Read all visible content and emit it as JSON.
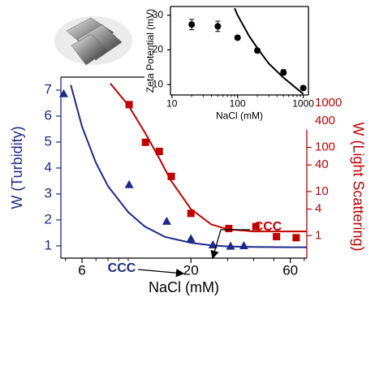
{
  "chart_data": [
    {
      "type": "scatter",
      "xlabel": "NaCl (mM)",
      "ylabel": "W (Turbidity)",
      "y2label": "W (Light Scattering)",
      "xlog": true,
      "y2log": true,
      "xlim": [
        4.75,
        72
      ],
      "xticks": [
        6,
        20,
        60
      ],
      "xminorticks": [
        5,
        7,
        8,
        9,
        10,
        30,
        40,
        50,
        70
      ],
      "ylim": [
        0.53,
        7.5
      ],
      "yticks": [
        1,
        2,
        3,
        4,
        5,
        6,
        7
      ],
      "y2lim": [
        0.31,
        3900
      ],
      "y2ticks": [
        1,
        4,
        10,
        40,
        100,
        400,
        1000
      ],
      "ycolor": "#1c2a8a",
      "y2color": "#c00000",
      "series": [
        {
          "marker": "triangle",
          "color": "#1c2a8a",
          "x": [
            4.9,
            10.1,
            15.3,
            20,
            25.5,
            31,
            35.9
          ],
          "values": [
            6.85,
            3.35,
            1.94,
            1.27,
            1.03,
            0.98,
            1.0
          ]
        },
        {
          "marker": "line",
          "color": "#1c2a8a",
          "x": [
            5.3,
            6,
            7,
            8,
            10,
            12,
            15,
            20,
            25,
            30,
            40,
            60,
            72
          ],
          "values": [
            7.2,
            5.6,
            4.2,
            3.3,
            2.3,
            1.75,
            1.35,
            1.12,
            1.02,
            0.98,
            0.96,
            0.95,
            0.95
          ]
        },
        {
          "marker": "square",
          "color": "#c00000",
          "axis": "y2",
          "x": [
            10.1,
            12.1,
            14.1,
            16.1,
            20,
            30.4,
            41,
            51.5,
            64
          ],
          "values": [
            930,
            130,
            81,
            22,
            3.2,
            1.45,
            1.6,
            0.95,
            0.9
          ]
        },
        {
          "marker": "line",
          "color": "#c00000",
          "axis": "y2",
          "x": [
            8.2,
            10,
            12,
            14,
            16,
            20,
            25,
            30,
            40,
            72
          ],
          "values": [
            2800,
            900,
            220,
            60,
            18,
            4,
            1.8,
            1.4,
            1.25,
            1.25
          ]
        }
      ],
      "annotations": [
        {
          "text": "CCC",
          "color": "#1c2a8a"
        },
        {
          "text": "CCC",
          "color": "#c00000"
        }
      ]
    },
    {
      "type": "scatter",
      "xlabel": "NaCl (mM)",
      "ylabel": "Zeta Potential (mV)",
      "xlog": true,
      "xlim": [
        9.5,
        1200
      ],
      "xticks": [
        10,
        100,
        1000
      ],
      "xminorticks": [
        20,
        30,
        40,
        50,
        60,
        70,
        80,
        90,
        200,
        300,
        400,
        500,
        600,
        700,
        800,
        900
      ],
      "ylim": [
        7,
        32.5
      ],
      "yticks": [
        10,
        20,
        30
      ],
      "series": [
        {
          "marker": "circle",
          "color": "#000000",
          "x": [
            20,
            50,
            100,
            200,
            500,
            1000
          ],
          "values": [
            27.3,
            26.8,
            23.5,
            19.8,
            13.5,
            9
          ],
          "errors": [
            1.5,
            1.5,
            0.6,
            0.6,
            0.8,
            0.6
          ]
        },
        {
          "marker": "line",
          "color": "#000000",
          "x": [
            90,
            100,
            150,
            200,
            300,
            500,
            1000
          ],
          "values": [
            32,
            30,
            24,
            20.5,
            16,
            12,
            7.3
          ]
        }
      ]
    }
  ]
}
